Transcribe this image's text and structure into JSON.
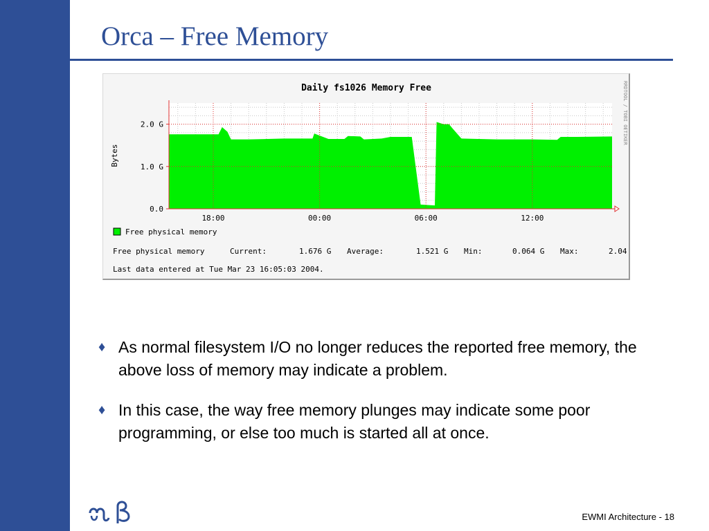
{
  "slide": {
    "title": "Orca – Free Memory",
    "footer": "EWMI Architecture - 18",
    "logo_icon": "aries-taurus-glyph-logo"
  },
  "bullets": [
    {
      "marker": "♦",
      "text": "As normal filesystem I/O no longer reduces the reported free memory, the above loss of memory may indicate a problem."
    },
    {
      "marker": "♦",
      "text": "In this case, the way free memory plunges may indicate some poor programming, or else too much is started all at once."
    }
  ],
  "chart_data": {
    "type": "area",
    "title": "Daily fs1026 Memory Free",
    "ylabel": "Bytes",
    "side_label": "RRDTOOL / TOBI OETIKER",
    "ylim": [
      0,
      2.5
    ],
    "yticks": [
      {
        "value": 0,
        "label": "0.0"
      },
      {
        "value": 1,
        "label": "1.0 G"
      },
      {
        "value": 2,
        "label": "2.0 G"
      }
    ],
    "xlim": [
      15.5,
      40.5
    ],
    "xticks": [
      {
        "value": 18,
        "label": "18:00"
      },
      {
        "value": 24,
        "label": "00:00"
      },
      {
        "value": 30,
        "label": "06:00"
      },
      {
        "value": 36,
        "label": "12:00"
      }
    ],
    "grid": true,
    "series": [
      {
        "name": "Free physical memory",
        "color": "#00f000",
        "x": [
          15.5,
          18.3,
          18.5,
          18.8,
          19.0,
          20.0,
          22.0,
          23.6,
          23.7,
          24.5,
          25.4,
          25.6,
          26.3,
          26.5,
          27.5,
          28.0,
          29.2,
          29.7,
          30.5,
          30.6,
          31.0,
          31.3,
          31.5,
          32.0,
          34.0,
          36.0,
          37.4,
          37.6,
          38.5,
          40.5
        ],
        "values": [
          1.76,
          1.76,
          1.93,
          1.82,
          1.64,
          1.64,
          1.66,
          1.66,
          1.78,
          1.65,
          1.65,
          1.72,
          1.71,
          1.64,
          1.66,
          1.7,
          1.7,
          0.1,
          0.08,
          2.05,
          2.0,
          2.0,
          1.9,
          1.66,
          1.64,
          1.64,
          1.63,
          1.7,
          1.7,
          1.71
        ]
      }
    ],
    "legend": [
      {
        "label": "Free physical memory",
        "color": "#00f000"
      }
    ],
    "stats": {
      "label": "Free physical memory",
      "current_label": "Current:",
      "current": "1.676 G",
      "average_label": "Average:",
      "average": "1.521 G",
      "min_label": "Min:",
      "min": "0.064 G",
      "max_label": "Max:",
      "max": "2.04"
    },
    "last_data": "Last data entered at Tue Mar 23 16:05:03 2004."
  }
}
